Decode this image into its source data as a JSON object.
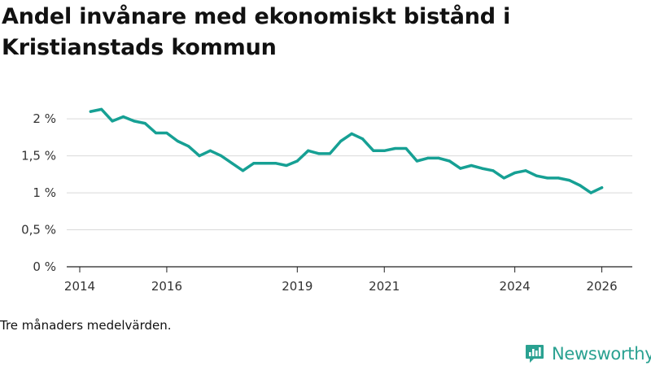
{
  "header": {
    "title_line1": "Andel invånare med ekonomiskt bistånd i",
    "title_line2": "Kristianstads kommun"
  },
  "footer": {
    "note": "Tre månaders medelvärden.",
    "brand": "Newsworthy",
    "brand_icon": "bar-chart-logo-icon"
  },
  "colors": {
    "line": "#16a094",
    "grid": "#d9d9d9",
    "axis": "#222222",
    "brand": "#2aa191"
  },
  "chart_data": {
    "type": "line",
    "title": "Andel invånare med ekonomiskt bistånd i Kristianstads kommun",
    "xlabel": "",
    "ylabel": "",
    "x_unit": "year (decimal)",
    "xlim": [
      2014,
      2026.7
    ],
    "ylim": [
      0,
      2.2
    ],
    "y_ticks": [
      {
        "value": 0,
        "label": "0 %"
      },
      {
        "value": 0.5,
        "label": "0,5 %"
      },
      {
        "value": 1,
        "label": "1 %"
      },
      {
        "value": 1.5,
        "label": "1,5 %"
      },
      {
        "value": 2,
        "label": "2 %"
      }
    ],
    "x_ticks": [
      {
        "value": 2014,
        "label": "2014"
      },
      {
        "value": 2016,
        "label": "2016"
      },
      {
        "value": 2019,
        "label": "2019"
      },
      {
        "value": 2021,
        "label": "2021"
      },
      {
        "value": 2024,
        "label": "2024"
      },
      {
        "value": 2026,
        "label": "2026"
      }
    ],
    "grid": true,
    "series": [
      {
        "name": "Andel invånare med ekonomiskt bistånd",
        "x": [
          2014.25,
          2014.5,
          2014.75,
          2015.0,
          2015.25,
          2015.5,
          2015.75,
          2016.0,
          2016.25,
          2016.5,
          2016.75,
          2017.0,
          2017.25,
          2017.5,
          2017.75,
          2018.0,
          2018.25,
          2018.5,
          2018.75,
          2019.0,
          2019.25,
          2019.5,
          2019.75,
          2020.0,
          2020.25,
          2020.5,
          2020.75,
          2021.0,
          2021.25,
          2021.5,
          2021.75,
          2022.0,
          2022.25,
          2022.5,
          2022.75,
          2023.0,
          2023.25,
          2023.5,
          2023.75,
          2024.0,
          2024.25,
          2024.5,
          2024.75,
          2025.0,
          2025.25,
          2025.5,
          2025.75,
          2026.0
        ],
        "values": [
          2.1,
          2.13,
          1.97,
          2.03,
          1.97,
          1.94,
          1.81,
          1.81,
          1.7,
          1.63,
          1.5,
          1.57,
          1.5,
          1.4,
          1.3,
          1.4,
          1.4,
          1.4,
          1.37,
          1.43,
          1.57,
          1.53,
          1.53,
          1.7,
          1.8,
          1.73,
          1.57,
          1.57,
          1.6,
          1.6,
          1.43,
          1.47,
          1.47,
          1.43,
          1.33,
          1.37,
          1.33,
          1.3,
          1.2,
          1.27,
          1.3,
          1.23,
          1.2,
          1.2,
          1.17,
          1.1,
          1.0,
          1.07
        ]
      }
    ]
  }
}
